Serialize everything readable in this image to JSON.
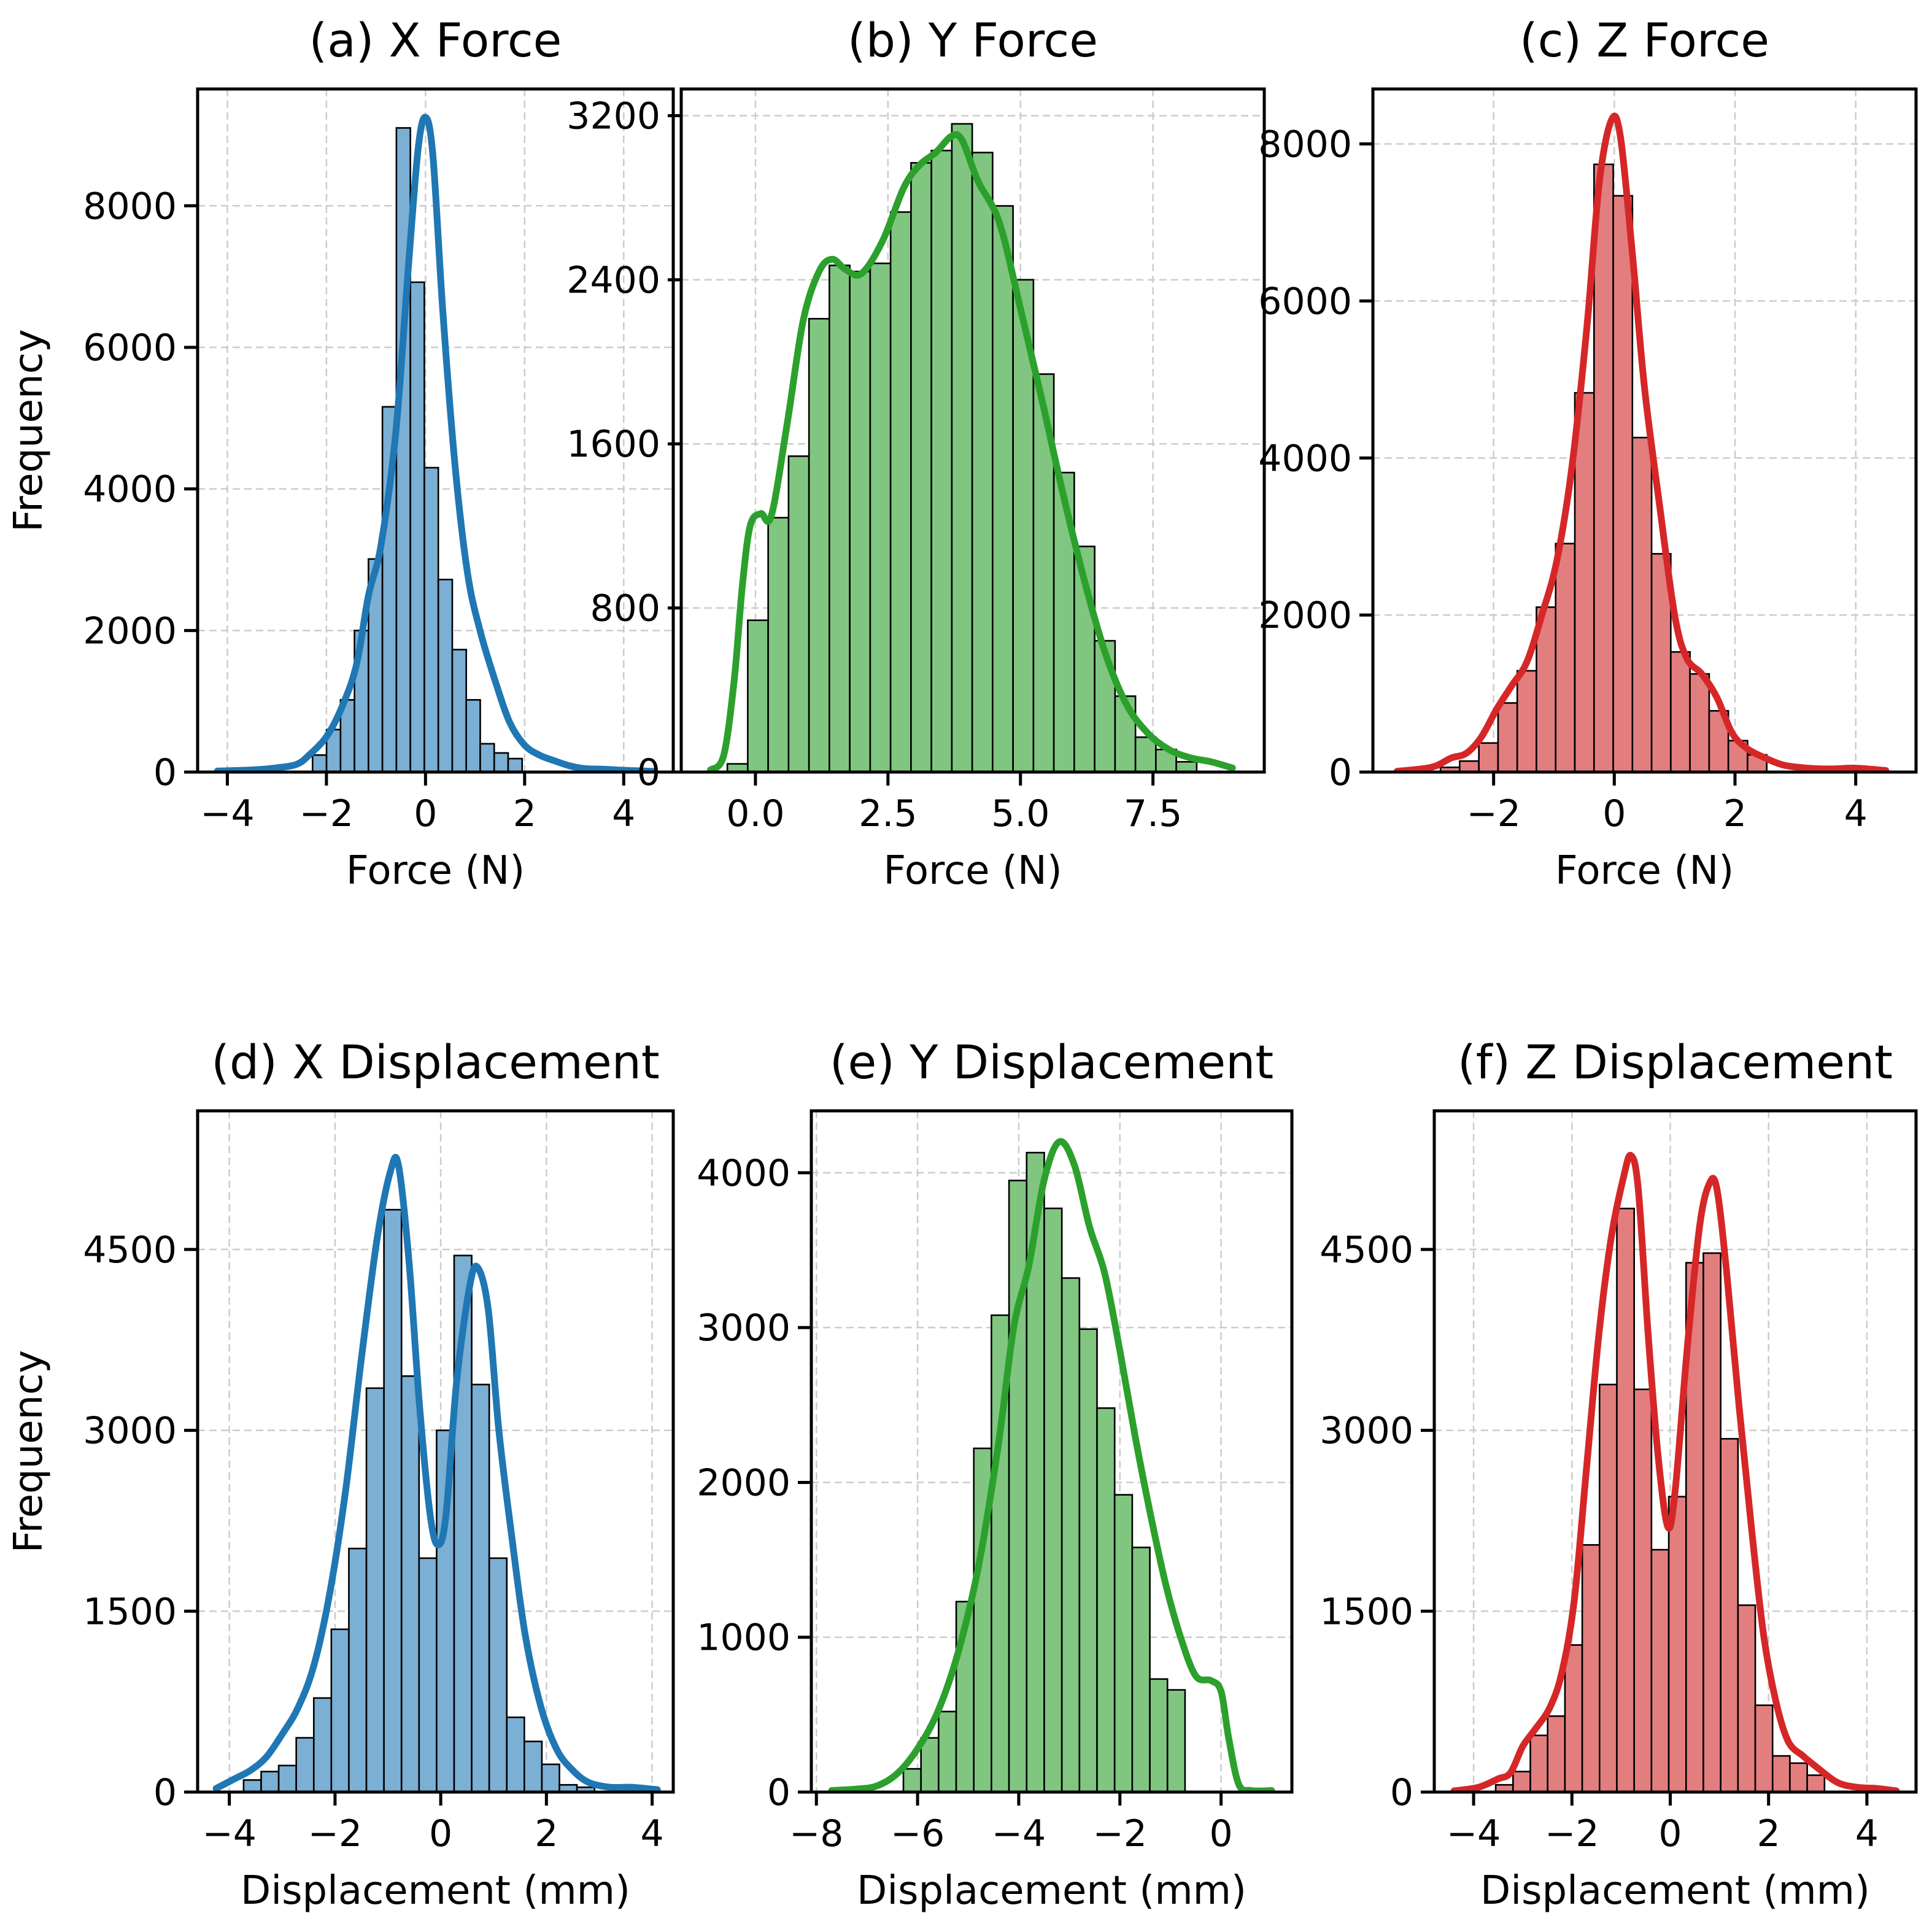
{
  "chart_data": [
    {
      "type": "bar",
      "id": "a",
      "title": "(a) X Force",
      "xlabel": "Force (N)",
      "ylabel": "Frequency",
      "color": "#1f77b4",
      "fill_color": "#7bafd4",
      "xlim": [
        -4.6,
        5.0
      ],
      "ylim": [
        0,
        9650
      ],
      "xticks": [
        -4,
        -2,
        0,
        2,
        4
      ],
      "xtick_labels": [
        "−4",
        "−2",
        "0",
        "2",
        "4"
      ],
      "yticks": [
        0,
        2000,
        4000,
        6000,
        8000
      ],
      "ytick_labels": [
        "0",
        "2000",
        "4000",
        "6000",
        "8000"
      ],
      "grid": true,
      "bin_start": -2.28,
      "bin_width": 0.282,
      "values": [
        240,
        600,
        1020,
        2000,
        3010,
        5160,
        9100,
        6920,
        4300,
        2720,
        1730,
        1020,
        400,
        270,
        190
      ],
      "kde": [
        [
          -4.2,
          15
        ],
        [
          -3.5,
          30
        ],
        [
          -3.0,
          60
        ],
        [
          -2.6,
          110
        ],
        [
          -2.35,
          240
        ],
        [
          -2.0,
          500
        ],
        [
          -1.7,
          900
        ],
        [
          -1.4,
          1500
        ],
        [
          -1.15,
          2500
        ],
        [
          -0.9,
          3200
        ],
        [
          -0.6,
          4800
        ],
        [
          -0.35,
          7100
        ],
        [
          -0.15,
          8800
        ],
        [
          0.0,
          9250
        ],
        [
          0.15,
          8700
        ],
        [
          0.35,
          6500
        ],
        [
          0.6,
          4300
        ],
        [
          0.85,
          2800
        ],
        [
          1.1,
          2000
        ],
        [
          1.4,
          1300
        ],
        [
          1.7,
          700
        ],
        [
          2.0,
          380
        ],
        [
          2.3,
          240
        ],
        [
          2.6,
          160
        ],
        [
          2.9,
          90
        ],
        [
          3.2,
          50
        ],
        [
          3.6,
          40
        ],
        [
          4.0,
          25
        ],
        [
          4.6,
          10
        ]
      ]
    },
    {
      "type": "bar",
      "id": "b",
      "title": "(b) Y Force",
      "xlabel": "Force (N)",
      "ylabel": "",
      "color": "#2ca02c",
      "fill_color": "#80c680",
      "xlim": [
        -1.4,
        9.6
      ],
      "ylim": [
        0,
        3330
      ],
      "xticks": [
        0.0,
        2.5,
        5.0,
        7.5
      ],
      "xtick_labels": [
        "0.0",
        "2.5",
        "5.0",
        "7.5"
      ],
      "yticks": [
        0,
        800,
        1600,
        2400,
        3200
      ],
      "ytick_labels": [
        "0",
        "800",
        "1600",
        "2400",
        "3200"
      ],
      "grid": true,
      "bin_start": -0.53,
      "bin_width": 0.385,
      "values": [
        40,
        740,
        1240,
        1540,
        2210,
        2470,
        2440,
        2480,
        2730,
        2970,
        3030,
        3160,
        3020,
        2760,
        2400,
        1940,
        1460,
        1100,
        640,
        370,
        170,
        110,
        50
      ],
      "kde": [
        [
          -0.85,
          10
        ],
        [
          -0.6,
          80
        ],
        [
          -0.4,
          450
        ],
        [
          -0.25,
          900
        ],
        [
          -0.1,
          1200
        ],
        [
          0.1,
          1260
        ],
        [
          0.3,
          1250
        ],
        [
          0.6,
          1700
        ],
        [
          0.9,
          2200
        ],
        [
          1.2,
          2440
        ],
        [
          1.45,
          2500
        ],
        [
          1.7,
          2450
        ],
        [
          2.0,
          2430
        ],
        [
          2.4,
          2590
        ],
        [
          2.8,
          2850
        ],
        [
          3.1,
          2960
        ],
        [
          3.4,
          3020
        ],
        [
          3.7,
          3100
        ],
        [
          3.9,
          3080
        ],
        [
          4.2,
          2880
        ],
        [
          4.6,
          2680
        ],
        [
          5.0,
          2260
        ],
        [
          5.4,
          1820
        ],
        [
          5.8,
          1360
        ],
        [
          6.2,
          940
        ],
        [
          6.6,
          580
        ],
        [
          7.0,
          330
        ],
        [
          7.4,
          190
        ],
        [
          7.8,
          110
        ],
        [
          8.2,
          70
        ],
        [
          8.6,
          50
        ],
        [
          9.0,
          20
        ]
      ]
    },
    {
      "type": "bar",
      "id": "c",
      "title": "(c) Z Force",
      "xlabel": "Force (N)",
      "ylabel": "",
      "color": "#d62728",
      "fill_color": "#e37e7f",
      "xlim": [
        -4.0,
        5.0
      ],
      "ylim": [
        0,
        8700
      ],
      "xticks": [
        -2,
        0,
        2,
        4
      ],
      "xtick_labels": [
        "−2",
        "0",
        "2",
        "4"
      ],
      "yticks": [
        0,
        2000,
        4000,
        6000,
        8000
      ],
      "ytick_labels": [
        "0",
        "2000",
        "4000",
        "6000",
        "8000"
      ],
      "grid": true,
      "bin_start": -2.88,
      "bin_width": 0.318,
      "values": [
        60,
        140,
        370,
        880,
        1290,
        2100,
        2910,
        4830,
        7740,
        7340,
        4260,
        2780,
        1530,
        1250,
        780,
        400,
        220
      ],
      "kde": [
        [
          -3.6,
          10
        ],
        [
          -3.2,
          40
        ],
        [
          -2.95,
          80
        ],
        [
          -2.7,
          180
        ],
        [
          -2.45,
          240
        ],
        [
          -2.2,
          450
        ],
        [
          -1.95,
          800
        ],
        [
          -1.7,
          1100
        ],
        [
          -1.45,
          1400
        ],
        [
          -1.2,
          2000
        ],
        [
          -0.95,
          2700
        ],
        [
          -0.7,
          3900
        ],
        [
          -0.45,
          5700
        ],
        [
          -0.25,
          7500
        ],
        [
          -0.05,
          8300
        ],
        [
          0.1,
          8100
        ],
        [
          0.3,
          6600
        ],
        [
          0.5,
          4900
        ],
        [
          0.75,
          3400
        ],
        [
          1.0,
          2000
        ],
        [
          1.2,
          1450
        ],
        [
          1.45,
          1250
        ],
        [
          1.7,
          950
        ],
        [
          1.95,
          500
        ],
        [
          2.2,
          300
        ],
        [
          2.5,
          180
        ],
        [
          2.8,
          90
        ],
        [
          3.2,
          50
        ],
        [
          3.6,
          40
        ],
        [
          4.0,
          50
        ],
        [
          4.5,
          20
        ]
      ]
    },
    {
      "type": "bar",
      "id": "d",
      "title": "(d) X Displacement",
      "xlabel": "Displacement (mm)",
      "ylabel": "Frequency",
      "color": "#1f77b4",
      "fill_color": "#7bafd4",
      "xlim": [
        -4.6,
        4.4
      ],
      "ylim": [
        0,
        5650
      ],
      "xticks": [
        -4,
        -2,
        0,
        2,
        4
      ],
      "xtick_labels": [
        "−4",
        "−2",
        "0",
        "2",
        "4"
      ],
      "yticks": [
        0,
        1500,
        3000,
        4500
      ],
      "ytick_labels": [
        "0",
        "1500",
        "3000",
        "4500"
      ],
      "grid": true,
      "bin_start": -3.73,
      "bin_width": 0.332,
      "values": [
        100,
        170,
        220,
        450,
        780,
        1350,
        2020,
        3350,
        4830,
        3450,
        1940,
        3000,
        4450,
        3380,
        1940,
        620,
        420,
        230,
        60,
        40
      ],
      "kde": [
        [
          -4.25,
          30
        ],
        [
          -3.9,
          110
        ],
        [
          -3.6,
          180
        ],
        [
          -3.3,
          290
        ],
        [
          -3.0,
          480
        ],
        [
          -2.7,
          700
        ],
        [
          -2.4,
          1050
        ],
        [
          -2.1,
          1650
        ],
        [
          -1.8,
          2500
        ],
        [
          -1.5,
          3600
        ],
        [
          -1.2,
          4600
        ],
        [
          -0.95,
          5150
        ],
        [
          -0.8,
          5200
        ],
        [
          -0.6,
          4400
        ],
        [
          -0.4,
          3200
        ],
        [
          -0.2,
          2300
        ],
        [
          -0.05,
          2050
        ],
        [
          0.1,
          2300
        ],
        [
          0.3,
          3400
        ],
        [
          0.55,
          4200
        ],
        [
          0.7,
          4350
        ],
        [
          0.9,
          4000
        ],
        [
          1.1,
          3000
        ],
        [
          1.35,
          2100
        ],
        [
          1.6,
          1300
        ],
        [
          1.9,
          700
        ],
        [
          2.2,
          350
        ],
        [
          2.5,
          180
        ],
        [
          2.8,
          80
        ],
        [
          3.2,
          40
        ],
        [
          3.6,
          40
        ],
        [
          4.1,
          20
        ]
      ]
    },
    {
      "type": "bar",
      "id": "e",
      "title": "(e) Y Displacement",
      "xlabel": "Displacement (mm)",
      "ylabel": "",
      "color": "#2ca02c",
      "fill_color": "#80c680",
      "xlim": [
        -8.1,
        1.4
      ],
      "ylim": [
        0,
        4400
      ],
      "xticks": [
        -8,
        -6,
        -4,
        -2,
        0
      ],
      "xtick_labels": [
        "−8",
        "−6",
        "−4",
        "−2",
        "0"
      ],
      "yticks": [
        0,
        1000,
        2000,
        3000,
        4000
      ],
      "ytick_labels": [
        "0",
        "1000",
        "2000",
        "3000",
        "4000"
      ],
      "grid": true,
      "bin_start": -6.28,
      "bin_width": 0.348,
      "values": [
        150,
        350,
        520,
        1230,
        2220,
        3080,
        3950,
        4130,
        3770,
        3320,
        2990,
        2480,
        1920,
        1580,
        730,
        660
      ],
      "kde": [
        [
          -7.7,
          10
        ],
        [
          -7.2,
          20
        ],
        [
          -6.8,
          40
        ],
        [
          -6.4,
          120
        ],
        [
          -6.0,
          280
        ],
        [
          -5.6,
          520
        ],
        [
          -5.2,
          900
        ],
        [
          -4.8,
          1450
        ],
        [
          -4.4,
          2250
        ],
        [
          -4.1,
          3000
        ],
        [
          -3.8,
          3400
        ],
        [
          -3.5,
          3950
        ],
        [
          -3.2,
          4200
        ],
        [
          -2.9,
          4050
        ],
        [
          -2.6,
          3650
        ],
        [
          -2.3,
          3350
        ],
        [
          -2.0,
          2850
        ],
        [
          -1.7,
          2300
        ],
        [
          -1.4,
          1800
        ],
        [
          -1.1,
          1350
        ],
        [
          -0.8,
          1000
        ],
        [
          -0.5,
          750
        ],
        [
          -0.2,
          720
        ],
        [
          0.0,
          650
        ],
        [
          0.15,
          350
        ],
        [
          0.35,
          50
        ],
        [
          0.6,
          10
        ],
        [
          1.0,
          10
        ]
      ]
    },
    {
      "type": "bar",
      "id": "f",
      "title": "(f) Z Displacement",
      "xlabel": "Displacement (mm)",
      "ylabel": "",
      "color": "#d62728",
      "fill_color": "#e37e7f",
      "xlim": [
        -4.8,
        5.0
      ],
      "ylim": [
        0,
        5650
      ],
      "xticks": [
        -4,
        -2,
        0,
        2,
        4
      ],
      "xtick_labels": [
        "−4",
        "−2",
        "0",
        "2",
        "4"
      ],
      "yticks": [
        0,
        1500,
        3000,
        4500
      ],
      "ytick_labels": [
        "0",
        "1500",
        "3000",
        "4500"
      ],
      "grid": true,
      "bin_start": -3.55,
      "bin_width": 0.352,
      "values": [
        60,
        170,
        470,
        630,
        1220,
        2050,
        3380,
        4840,
        3340,
        2010,
        2450,
        4390,
        4470,
        2930,
        1550,
        720,
        300,
        240,
        140
      ],
      "kde": [
        [
          -4.4,
          10
        ],
        [
          -3.9,
          40
        ],
        [
          -3.5,
          110
        ],
        [
          -3.25,
          160
        ],
        [
          -3.0,
          380
        ],
        [
          -2.75,
          520
        ],
        [
          -2.45,
          700
        ],
        [
          -2.2,
          1000
        ],
        [
          -1.95,
          1600
        ],
        [
          -1.7,
          2700
        ],
        [
          -1.45,
          3800
        ],
        [
          -1.2,
          4600
        ],
        [
          -0.95,
          5100
        ],
        [
          -0.8,
          5280
        ],
        [
          -0.65,
          5000
        ],
        [
          -0.45,
          3800
        ],
        [
          -0.25,
          2800
        ],
        [
          -0.05,
          2200
        ],
        [
          0.1,
          2500
        ],
        [
          0.35,
          3700
        ],
        [
          0.6,
          4700
        ],
        [
          0.8,
          5050
        ],
        [
          0.95,
          5000
        ],
        [
          1.15,
          4300
        ],
        [
          1.4,
          3200
        ],
        [
          1.65,
          2200
        ],
        [
          1.9,
          1300
        ],
        [
          2.15,
          750
        ],
        [
          2.4,
          420
        ],
        [
          2.7,
          300
        ],
        [
          3.0,
          200
        ],
        [
          3.4,
          80
        ],
        [
          3.8,
          40
        ],
        [
          4.2,
          30
        ],
        [
          4.6,
          10
        ]
      ]
    }
  ]
}
